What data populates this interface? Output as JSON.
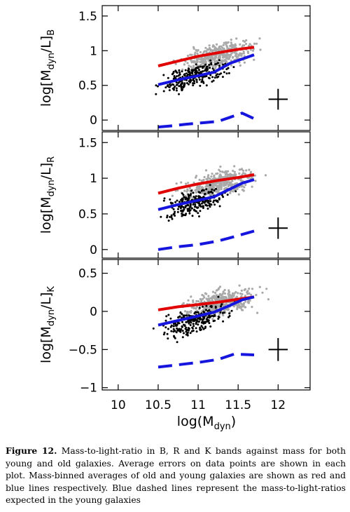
{
  "colors": {
    "old": "#e00000",
    "young": "#1515dd",
    "scatter_old": "#a9a9a9",
    "scatter_young": "#000000"
  },
  "chart_data": [
    {
      "type": "scatter",
      "panel": "B",
      "ylabel": {
        "prefix": "log[M",
        "sub1": "dyn",
        "mid": "/L]",
        "sub2": "B"
      },
      "xlim": [
        9.8,
        12.4
      ],
      "ylim": [
        -0.15,
        1.65
      ],
      "yticks": [
        0,
        0.5,
        1,
        1.5
      ],
      "ytick_labels": [
        "0",
        "0.5",
        "1",
        "1.5"
      ],
      "old_center": {
        "x": 11.25,
        "y": 0.92
      },
      "young_center": {
        "x": 10.95,
        "y": 0.63
      },
      "series": [
        {
          "style": "old-mean",
          "x": [
            10.5,
            10.75,
            11.0,
            11.25,
            11.5,
            11.7
          ],
          "y": [
            0.78,
            0.85,
            0.92,
            0.97,
            1.02,
            1.05
          ]
        },
        {
          "style": "young-mean",
          "x": [
            10.5,
            10.75,
            11.0,
            11.2,
            11.4,
            11.55,
            11.7
          ],
          "y": [
            0.51,
            0.58,
            0.64,
            0.69,
            0.82,
            0.88,
            0.94
          ]
        },
        {
          "style": "expected",
          "x": [
            10.5,
            10.7,
            10.85,
            11.05,
            11.25,
            11.4,
            11.55,
            11.7
          ],
          "y": [
            -0.1,
            -0.08,
            -0.06,
            -0.04,
            -0.02,
            0.04,
            0.1,
            0.02
          ]
        }
      ],
      "error_bar": {
        "x": 12.0,
        "y": 0.3,
        "xerr": 0.12,
        "yerr": 0.15
      }
    },
    {
      "type": "scatter",
      "panel": "R",
      "ylabel": {
        "prefix": "log[M",
        "sub1": "dyn",
        "mid": "/L]",
        "sub2": "R"
      },
      "xlim": [
        9.8,
        12.4
      ],
      "ylim": [
        -0.12,
        1.65
      ],
      "yticks": [
        0,
        0.5,
        1,
        1.5
      ],
      "ytick_labels": [
        "0",
        "0.5",
        "1",
        "1.5"
      ],
      "old_center": {
        "x": 11.25,
        "y": 0.92
      },
      "young_center": {
        "x": 10.95,
        "y": 0.66
      },
      "series": [
        {
          "style": "old-mean",
          "x": [
            10.5,
            10.75,
            11.0,
            11.25,
            11.5,
            11.7
          ],
          "y": [
            0.79,
            0.86,
            0.92,
            0.97,
            1.01,
            1.05
          ]
        },
        {
          "style": "young-mean",
          "x": [
            10.5,
            10.75,
            11.0,
            11.2,
            11.4,
            11.55,
            11.7
          ],
          "y": [
            0.56,
            0.63,
            0.69,
            0.74,
            0.85,
            0.93,
            0.98
          ]
        },
        {
          "style": "expected",
          "x": [
            10.5,
            10.75,
            11.0,
            11.25,
            11.45,
            11.7
          ],
          "y": [
            0.0,
            0.04,
            0.07,
            0.12,
            0.18,
            0.26
          ]
        }
      ],
      "error_bar": {
        "x": 12.0,
        "y": 0.3,
        "xerr": 0.12,
        "yerr": 0.15
      }
    },
    {
      "type": "scatter",
      "panel": "K",
      "ylabel": {
        "prefix": "log[M",
        "sub1": "dyn",
        "mid": "/L]",
        "sub2": "K"
      },
      "xlim": [
        9.8,
        12.4
      ],
      "ylim": [
        -1.03,
        0.68
      ],
      "yticks": [
        -1,
        -0.5,
        0,
        0.5
      ],
      "ytick_labels": [
        "−1",
        "−0.5",
        "0",
        "0.5"
      ],
      "xticks": [
        10,
        10.5,
        11,
        11.5,
        12
      ],
      "xtick_labels": [
        "10",
        "10.5",
        "11",
        "11.5",
        "12"
      ],
      "xlabel": {
        "prefix": "log(M",
        "sub": "dyn",
        "suffix": ")"
      },
      "old_center": {
        "x": 11.25,
        "y": 0.1
      },
      "young_center": {
        "x": 10.95,
        "y": -0.12
      },
      "series": [
        {
          "style": "old-mean",
          "x": [
            10.5,
            10.75,
            11.0,
            11.25,
            11.5,
            11.7
          ],
          "y": [
            0.02,
            0.06,
            0.09,
            0.12,
            0.16,
            0.19
          ]
        },
        {
          "style": "young-mean",
          "x": [
            10.5,
            10.75,
            11.0,
            11.2,
            11.4,
            11.55,
            11.7
          ],
          "y": [
            -0.18,
            -0.12,
            -0.06,
            -0.01,
            0.08,
            0.15,
            0.19
          ]
        },
        {
          "style": "expected",
          "x": [
            10.5,
            10.75,
            11.0,
            11.25,
            11.45,
            11.7
          ],
          "y": [
            -0.73,
            -0.7,
            -0.67,
            -0.63,
            -0.56,
            -0.57
          ]
        }
      ],
      "error_bar": {
        "x": 12.0,
        "y": -0.5,
        "xerr": 0.12,
        "yerr": 0.15
      }
    }
  ],
  "caption": {
    "label": "Figure 12.",
    "text": "Mass-to-light-ratio in B, R and K bands against mass for both young and old galaxies. Average errors on data points are shown in each plot. Mass-binned averages of old and young galaxies are shown as red and blue lines respectively. Blue dashed lines represent the mass-to-light-ratios expected in the young galaxies"
  }
}
